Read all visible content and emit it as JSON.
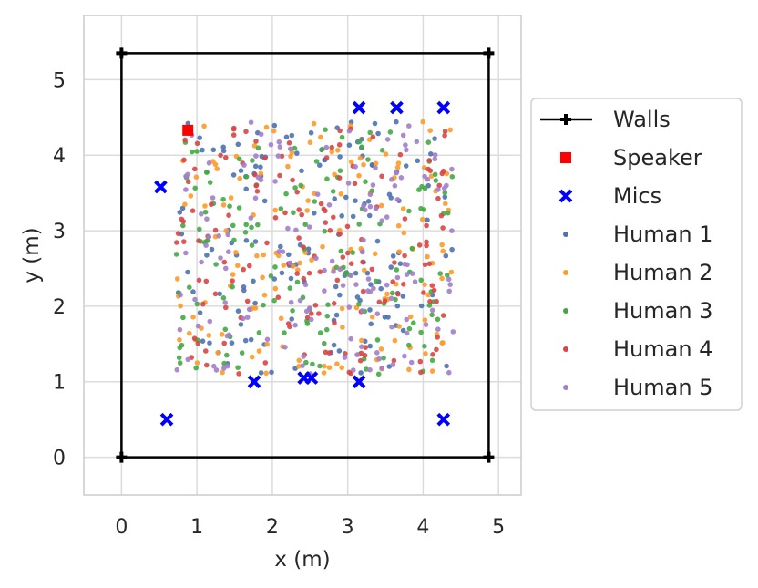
{
  "chart_data": {
    "type": "scatter",
    "xlabel": "x (m)",
    "ylabel": "y (m)",
    "xlim": [
      -0.5,
      5.3
    ],
    "ylim": [
      -0.5,
      5.85
    ],
    "xticks": [
      0,
      1,
      2,
      3,
      4,
      5
    ],
    "yticks": [
      0,
      1,
      2,
      3,
      4,
      5
    ],
    "grid": true,
    "legend_position": "right, outside plot",
    "walls": {
      "name": "Walls",
      "color": "#000000",
      "points": [
        [
          0,
          0
        ],
        [
          4.87,
          0
        ],
        [
          4.87,
          5.35
        ],
        [
          0,
          5.35
        ],
        [
          0,
          0
        ]
      ]
    },
    "speaker": {
      "name": "Speaker",
      "color": "#ff0000",
      "points": [
        [
          0.88,
          4.33
        ]
      ]
    },
    "mics": {
      "name": "Mics",
      "color": "#0000ff",
      "points": [
        [
          0.52,
          3.58
        ],
        [
          0.6,
          0.5
        ],
        [
          1.76,
          1.0
        ],
        [
          2.42,
          1.05
        ],
        [
          2.52,
          1.05
        ],
        [
          3.15,
          1.0
        ],
        [
          3.15,
          4.63
        ],
        [
          3.65,
          4.63
        ],
        [
          4.27,
          4.63
        ],
        [
          4.27,
          0.5
        ]
      ]
    },
    "humans": {
      "region_x": [
        0.6,
        4.4
      ],
      "region_y": [
        1.1,
        4.45
      ],
      "points_per_series": 150,
      "series": [
        {
          "name": "Human 1",
          "color": "#4c72b0"
        },
        {
          "name": "Human 2",
          "color": "#ff9a28"
        },
        {
          "name": "Human 3",
          "color": "#45a845"
        },
        {
          "name": "Human 4",
          "color": "#d94545"
        },
        {
          "name": "Human 5",
          "color": "#a27ecb"
        }
      ]
    },
    "legend": [
      "Walls",
      "Speaker",
      "Mics",
      "Human 1",
      "Human 2",
      "Human 3",
      "Human 4",
      "Human 5"
    ]
  }
}
